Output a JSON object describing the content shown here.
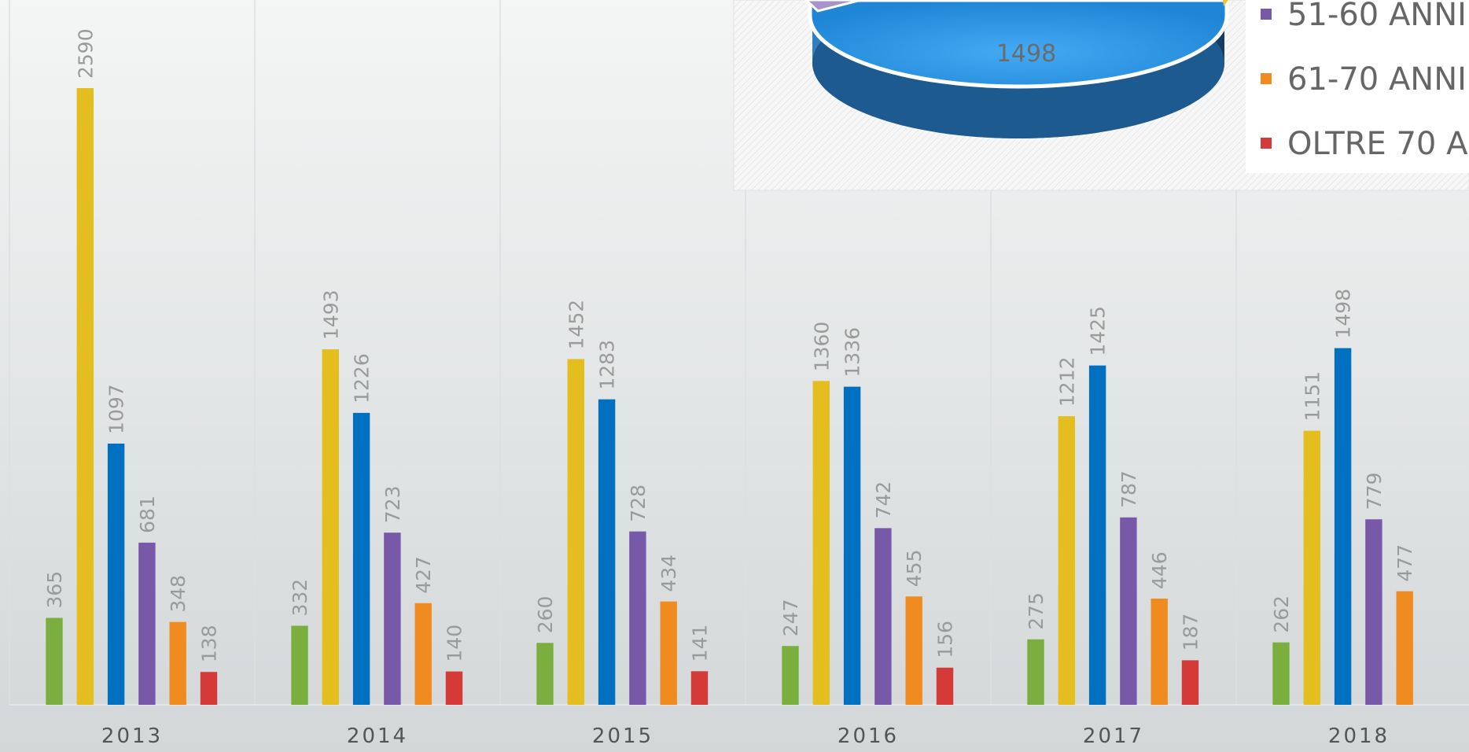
{
  "chart_data": {
    "type": "bar",
    "categories": [
      "2013",
      "2014",
      "2015",
      "2016",
      "2017",
      "2018"
    ],
    "series": [
      {
        "color": "#7aaf3f",
        "values": [
          365,
          332,
          260,
          247,
          275,
          262
        ]
      },
      {
        "color": "#e4bd1f",
        "values": [
          2590,
          1493,
          1452,
          1360,
          1212,
          1151
        ]
      },
      {
        "color": "#0071c1",
        "values": [
          1097,
          1226,
          1283,
          1336,
          1425,
          1498
        ]
      },
      {
        "name": "51-60 ANNI",
        "color": "#7858a8",
        "values": [
          681,
          723,
          728,
          742,
          787,
          779
        ]
      },
      {
        "name": "61-70 ANNI",
        "color": "#f08c1f",
        "values": [
          348,
          427,
          434,
          455,
          446,
          477
        ]
      },
      {
        "name": "OLTRE 70 A",
        "color": "#d43a37",
        "values": [
          138,
          140,
          141,
          156,
          187,
          null
        ]
      }
    ]
  }
}
